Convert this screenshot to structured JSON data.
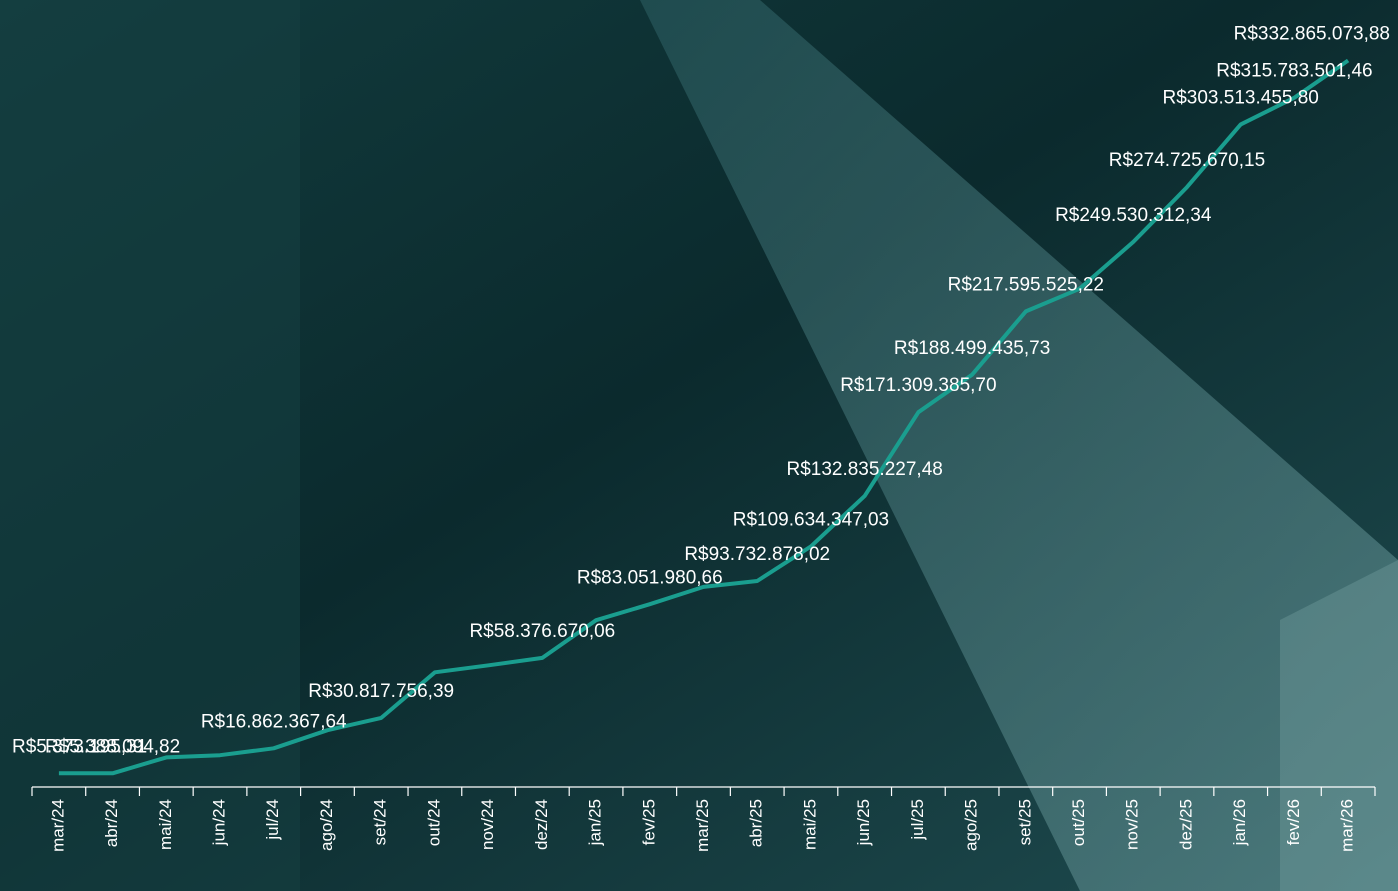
{
  "chart_data": {
    "type": "line",
    "categories": [
      "mar/24",
      "abr/24",
      "mai/24",
      "jun/24",
      "jul/24",
      "ago/24",
      "set/24",
      "out/24",
      "nov/24",
      "dez/24",
      "jan/25",
      "fev/25",
      "mar/25",
      "abr/25",
      "mai/25",
      "jun/25",
      "jul/25",
      "ago/25",
      "set/25",
      "out/25",
      "nov/25",
      "dez/25",
      "jan/26",
      "fev/26",
      "mar/26"
    ],
    "values": [
      5373195.31,
      5388094.82,
      12700000,
      13700000,
      16862367.64,
      25200000,
      30817756.39,
      51800000,
      55000000,
      58376670.06,
      75700000,
      83051980.66,
      91000000,
      93732878.02,
      109634347.03,
      132835227.48,
      171309385.7,
      188499435.73,
      217595525.22,
      228000000,
      249530312.34,
      274725670.15,
      303513455.8,
      315783501.46,
      332865073.88
    ],
    "value_labels": [
      "R$5.373.195,31",
      "R$5.388.094,82",
      null,
      null,
      "R$16.862.367,64",
      null,
      "R$30.817.756,39",
      null,
      null,
      "R$58.376.670,06",
      null,
      "R$83.051.980,66",
      null,
      "R$93.732.878,02",
      "R$109.634.347,03",
      "R$132.835.227,48",
      "R$171.309.385,70",
      "R$188.499.435,73",
      "R$217.595.525,22",
      null,
      "R$249.530.312,34",
      "R$274.725.670,15",
      "R$303.513.455,80",
      "R$315.783.501,46",
      "R$332.865.073,88"
    ],
    "color": "#1a9e8f",
    "ylim": [
      0,
      340000000
    ]
  }
}
